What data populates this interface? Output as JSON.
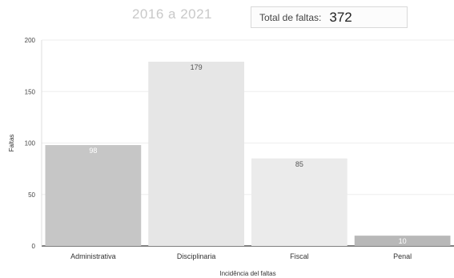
{
  "header": {
    "period": "2016 a 2021",
    "total_label": "Total de faltas:",
    "total_value": "372"
  },
  "chart_data": {
    "type": "bar",
    "title": "",
    "xlabel": "Incidência del faltas",
    "ylabel": "Faltas",
    "categories": [
      "Administrativa",
      "Disciplinaria",
      "Fiscal",
      "Penal"
    ],
    "values": [
      98,
      179,
      85,
      10
    ],
    "data_labels": [
      "98",
      "179",
      "85",
      "10"
    ],
    "ylim": [
      0,
      200
    ],
    "yticks": [
      0,
      50,
      100,
      150,
      200
    ],
    "grid": true,
    "colors": [
      "#c6c6c6",
      "#e6e6e6",
      "#ebebeb",
      "#b8b8b8"
    ]
  }
}
